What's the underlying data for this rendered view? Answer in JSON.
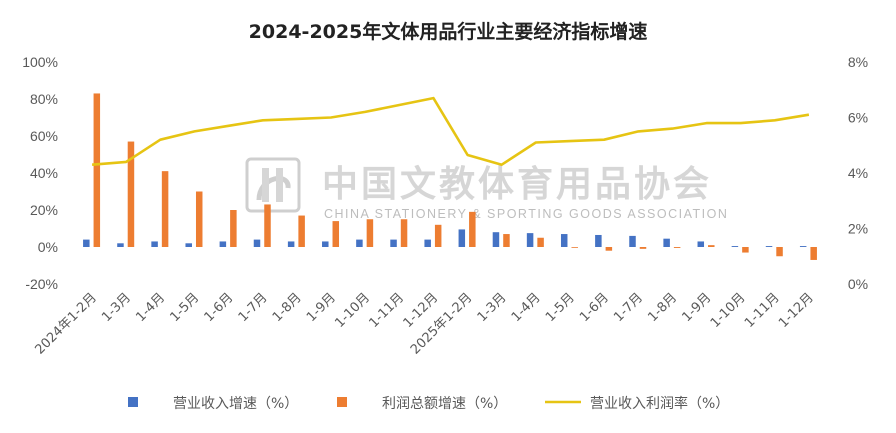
{
  "chart_data": {
    "type": "bar+line",
    "title": "2024-2025年文体用品行业主要经济指标增速",
    "watermark": {
      "cn": "中国文教体育用品协会",
      "en": "CHINA STATIONERY & SPORTING GOODS ASSOCIATION"
    },
    "categories": [
      "2024年1-2月",
      "1-3月",
      "1-4月",
      "1-5月",
      "1-6月",
      "1-7月",
      "1-8月",
      "1-9月",
      "1-10月",
      "1-11月",
      "1-12月",
      "2025年1-2月",
      "1-3月",
      "1-4月",
      "1-5月",
      "1-6月",
      "1-7月",
      "1-8月",
      "1-9月",
      "1-10月",
      "1-11月",
      "1-12月"
    ],
    "y_left": {
      "ticks": [
        "100%",
        "80%",
        "60%",
        "40%",
        "20%",
        "0%",
        "-20%"
      ],
      "min": -20,
      "max": 100
    },
    "y_right": {
      "ticks": [
        "8%",
        "6%",
        "4%",
        "2%",
        "0%"
      ],
      "min": 0,
      "max": 8
    },
    "series": [
      {
        "name": "营业收入增速（%）",
        "type": "bar",
        "axis": "left",
        "color": "#4472C4",
        "values": [
          4,
          2,
          3,
          2,
          3,
          4,
          3,
          3,
          4,
          4,
          4,
          9.5,
          8,
          7.5,
          7,
          6.5,
          6,
          4.5,
          3,
          0.5,
          0.5,
          0.5
        ]
      },
      {
        "name": "利润总额增速（%）",
        "type": "bar",
        "axis": "left",
        "color": "#ED7D31",
        "values": [
          83,
          57,
          41,
          30,
          20,
          23,
          17,
          14,
          15,
          15,
          12,
          19,
          7,
          5,
          0,
          -2,
          -1,
          -0.5,
          1,
          -3,
          -5,
          -7
        ]
      },
      {
        "name": "营业收入利润率（%）",
        "type": "line",
        "axis": "right",
        "color": "#E6C413",
        "values": [
          4.3,
          4.4,
          5.2,
          5.5,
          5.7,
          5.9,
          5.95,
          6.0,
          6.2,
          6.45,
          6.7,
          4.65,
          4.3,
          5.1,
          5.15,
          5.2,
          5.5,
          5.6,
          5.8,
          5.8,
          5.9,
          6.1
        ]
      }
    ],
    "grid": false,
    "legend_position": "bottom"
  }
}
